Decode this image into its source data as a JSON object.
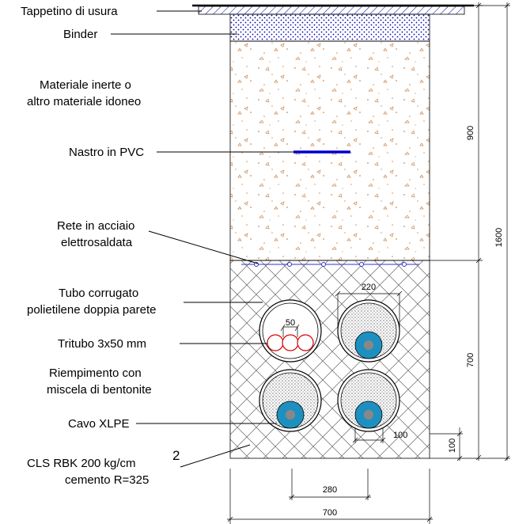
{
  "labels": {
    "tappetino": "Tappetino di usura",
    "binder": "Binder",
    "inerte_1": "Materiale inerte o",
    "inerte_2": "altro materiale idoneo",
    "nastro": "Nastro in PVC",
    "rete_1": "Rete in acciaio",
    "rete_2": "elettrosaldata",
    "tubo_1": "Tubo corrugato",
    "tubo_2": "polietilene doppia parete",
    "tritubo": "Tritubo 3x50 mm",
    "riemp_1": "Riempimento con",
    "riemp_2": "miscela di bentonite",
    "cavo": "Cavo XLPE",
    "cls_1": "CLS RBK 200 kg/cm",
    "cls_sup": "2",
    "cls_2": "cemento R=325"
  },
  "dimensions": {
    "d900": "900",
    "d1600": "1600",
    "d700_right": "700",
    "d100_right": "100",
    "d220": "220",
    "d50": "50",
    "d100_cable": "100",
    "d280": "280",
    "d700_bottom": "700"
  },
  "colors": {
    "cable_outer": "#1e90c0",
    "cable_core": "#888888",
    "nastro": "#0000cc",
    "rete": "#3333cc",
    "tritubo": "#d40000",
    "sand": "#e0a070",
    "hatch": "#0000aa"
  }
}
